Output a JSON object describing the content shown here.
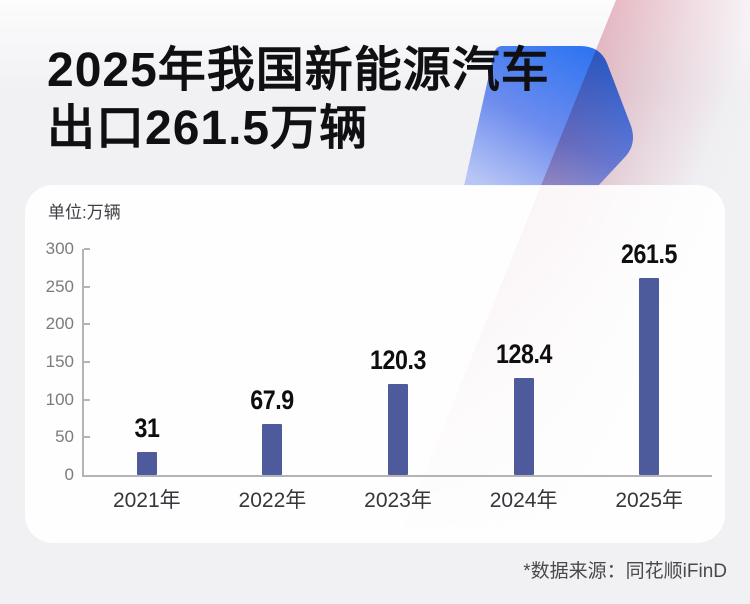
{
  "header": {
    "title_line1": "2025年我国新能源汽车",
    "title_line2": "出口261.5万辆"
  },
  "card": {
    "unit_label": "单位:万辆"
  },
  "footer": {
    "source_note": "*数据来源：同花顺iFinD"
  },
  "colors": {
    "bar": "#4d5a9c",
    "accent_blue": "#2b73f2",
    "accent_pink": "#e7b2be",
    "background": "#f1f1f4",
    "card_background": "#ffffff"
  },
  "chart_data": {
    "type": "bar",
    "title": "2025年我国新能源汽车出口261.5万辆",
    "unit": "万辆",
    "categories": [
      "2021年",
      "2022年",
      "2023年",
      "2024年",
      "2025年"
    ],
    "values": [
      31,
      67.9,
      120.3,
      128.4,
      261.5
    ],
    "value_labels": [
      "31",
      "67.9",
      "120.3",
      "128.4",
      "261.5"
    ],
    "xlabel": "",
    "ylabel": "单位:万辆",
    "ylim": [
      0,
      300
    ],
    "yticks": [
      300,
      250,
      200,
      150,
      100,
      50,
      0
    ],
    "grid": false,
    "legend": false,
    "bar_color": "#4d5a9c",
    "source": "同花顺iFinD"
  }
}
